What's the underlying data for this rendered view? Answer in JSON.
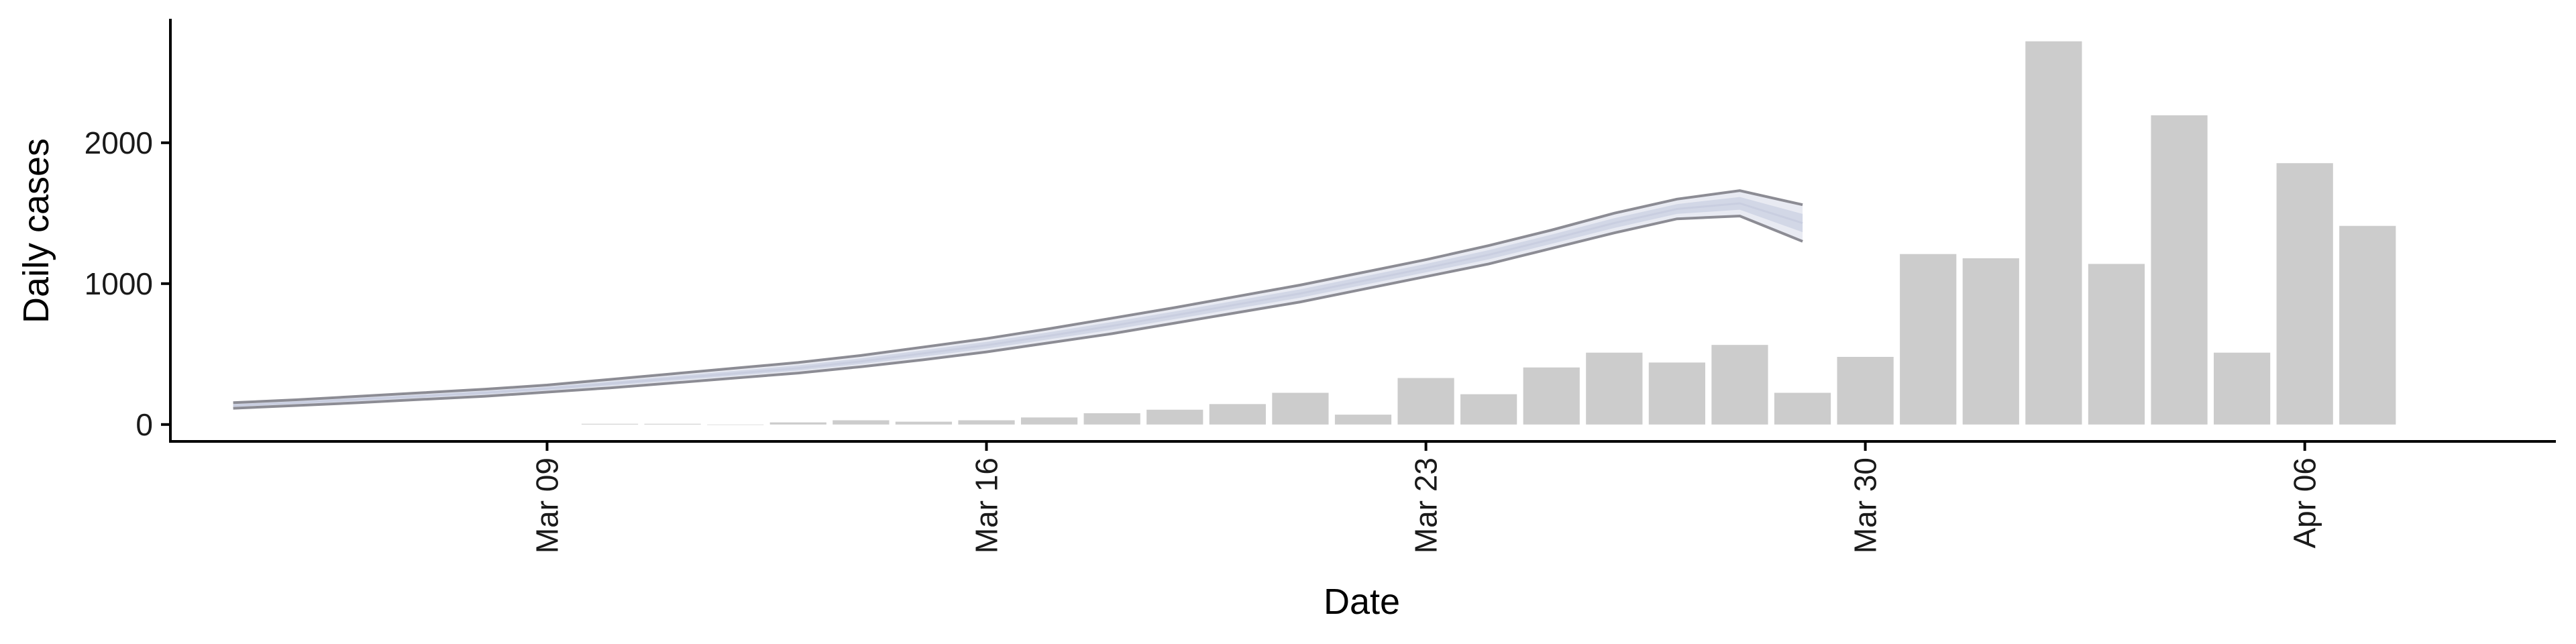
{
  "chart_data": {
    "type": "bar",
    "xlabel": "Date",
    "ylabel": "Daily cases",
    "x_ticks": [
      "Mar 09",
      "Mar 16",
      "Mar 23",
      "Mar 30",
      "Apr 06"
    ],
    "y_ticks": [
      "0",
      "1000",
      "2000"
    ],
    "ylim": [
      -120,
      2880
    ],
    "xlim": [
      "2020-03-03",
      "2020-04-10"
    ],
    "grid": false,
    "legend": "none",
    "colors": {
      "bars": "#cccccc",
      "line": "#8c8c94",
      "band_outer": "#e8eaf2",
      "band_inner": "#d2d7e6",
      "axis": "#000000"
    },
    "bars": {
      "dates": [
        "2020-03-10",
        "2020-03-11",
        "2020-03-12",
        "2020-03-13",
        "2020-03-14",
        "2020-03-15",
        "2020-03-16",
        "2020-03-17",
        "2020-03-18",
        "2020-03-19",
        "2020-03-20",
        "2020-03-21",
        "2020-03-22",
        "2020-03-23",
        "2020-03-24",
        "2020-03-25",
        "2020-03-26",
        "2020-03-27",
        "2020-03-28",
        "2020-03-29",
        "2020-03-30",
        "2020-03-31",
        "2020-04-01",
        "2020-04-02",
        "2020-04-03",
        "2020-04-04",
        "2020-04-05",
        "2020-04-06",
        "2020-04-07"
      ],
      "values": [
        5,
        5,
        0,
        15,
        30,
        20,
        30,
        50,
        80,
        105,
        145,
        225,
        70,
        330,
        215,
        405,
        510,
        440,
        565,
        225,
        480,
        1210,
        1180,
        2720,
        1140,
        2195,
        510,
        1855,
        1410
      ]
    },
    "model_fit": {
      "dates": [
        "2020-03-04",
        "2020-03-05",
        "2020-03-06",
        "2020-03-07",
        "2020-03-08",
        "2020-03-09",
        "2020-03-10",
        "2020-03-11",
        "2020-03-12",
        "2020-03-13",
        "2020-03-14",
        "2020-03-15",
        "2020-03-16",
        "2020-03-17",
        "2020-03-18",
        "2020-03-19",
        "2020-03-20",
        "2020-03-21",
        "2020-03-22",
        "2020-03-23",
        "2020-03-24",
        "2020-03-25",
        "2020-03-26",
        "2020-03-27",
        "2020-03-28",
        "2020-03-29"
      ],
      "upper": [
        155,
        175,
        200,
        225,
        250,
        280,
        320,
        360,
        400,
        440,
        490,
        550,
        610,
        680,
        755,
        830,
        910,
        990,
        1080,
        1170,
        1270,
        1380,
        1500,
        1600,
        1660,
        1560
      ],
      "mid": [
        135,
        155,
        178,
        201,
        225,
        255,
        290,
        327,
        363,
        400,
        448,
        505,
        563,
        630,
        700,
        775,
        853,
        930,
        1020,
        1110,
        1205,
        1315,
        1430,
        1530,
        1570,
        1430
      ],
      "lower": [
        115,
        135,
        155,
        178,
        200,
        230,
        260,
        295,
        330,
        365,
        410,
        460,
        515,
        580,
        645,
        720,
        795,
        870,
        960,
        1050,
        1140,
        1250,
        1360,
        1460,
        1480,
        1300
      ]
    }
  }
}
